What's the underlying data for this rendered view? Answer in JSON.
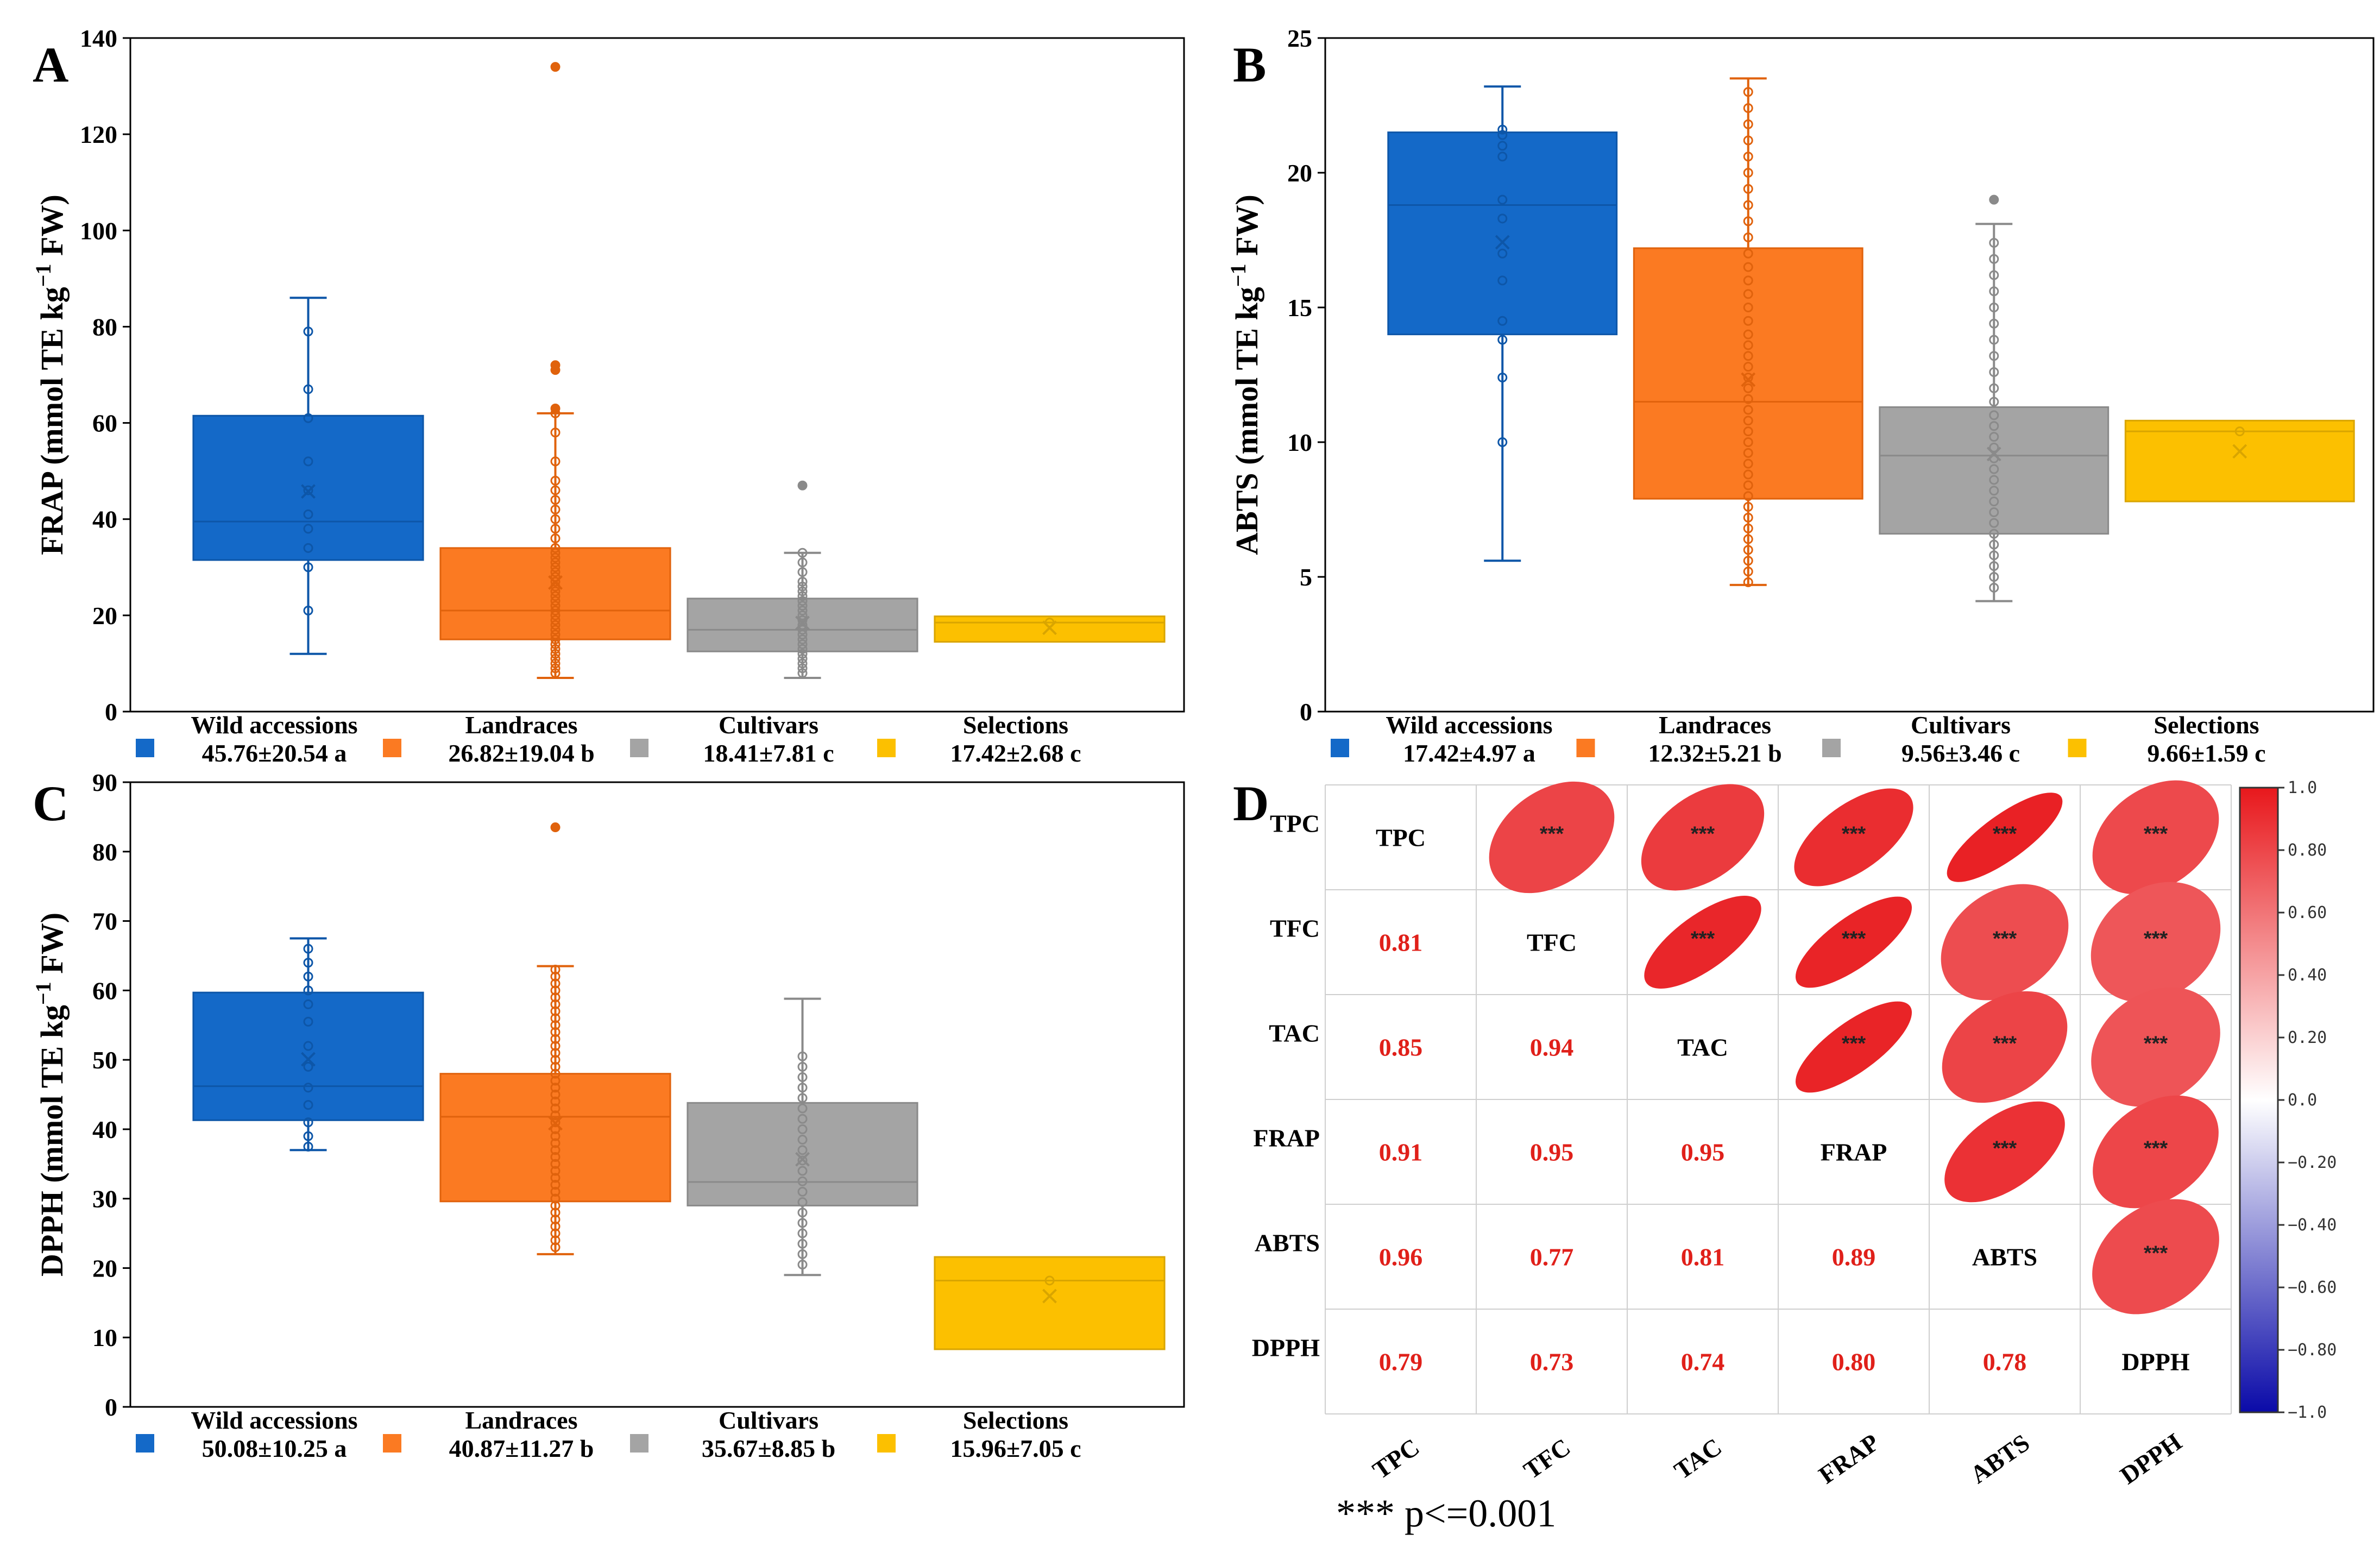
{
  "colors": {
    "wild": "#1469c8",
    "landraces": "#fb7a22",
    "cultivars": "#a4a4a4",
    "selections": "#fcc000",
    "corr_positive": "#e8181c",
    "corr_negative": "#0a0aa8"
  },
  "panels": {
    "A": "A",
    "B": "B",
    "C": "C",
    "D": "D"
  },
  "chart_data": [
    {
      "type": "box",
      "panel": "A",
      "ylabel_main": "FRAP (mmol TE kg",
      "ylabel_sup": "−1",
      "ylabel_end": " FW)",
      "ylim": [
        0,
        140
      ],
      "ticks": [
        0,
        20,
        40,
        60,
        80,
        100,
        120,
        140
      ],
      "groups": [
        {
          "name": "Wild accessions",
          "stat": "45.76±20.54 a",
          "min": 12,
          "q1": 31.5,
          "median": 39.5,
          "q3": 61.5,
          "max": 86,
          "mean": 45.76,
          "points": [
            21,
            30,
            34,
            38,
            41,
            46,
            52,
            61,
            67,
            79
          ]
        },
        {
          "name": "Landraces",
          "stat": "26.82±19.04 b",
          "min": 7,
          "q1": 15,
          "median": 21,
          "q3": 34,
          "max": 62,
          "mean": 26.82,
          "points": [
            8,
            9,
            10,
            11,
            12,
            13,
            14,
            15,
            16,
            17,
            18,
            19,
            20,
            21,
            22,
            23,
            24,
            25,
            26,
            27,
            28,
            29,
            30,
            31,
            32,
            33,
            34,
            36,
            38,
            40,
            42,
            44,
            46,
            48,
            52,
            58,
            62,
            63,
            71,
            72,
            134
          ]
        },
        {
          "name": "Cultivars",
          "stat": "18.41±7.81 c",
          "min": 7,
          "q1": 12.5,
          "median": 17,
          "q3": 23.5,
          "max": 33,
          "mean": 18.41,
          "points": [
            8,
            9,
            10,
            11,
            12,
            13,
            14,
            15,
            16,
            17,
            18,
            19,
            20,
            21,
            22,
            23,
            24,
            25,
            26,
            27,
            29,
            31,
            33,
            47
          ]
        },
        {
          "name": "Selections",
          "stat": "17.42±2.68 c",
          "min": 14.5,
          "q1": 14.5,
          "median": 18.5,
          "q3": 19.8,
          "max": 19.8,
          "mean": 17.42,
          "points": [
            18.5
          ]
        }
      ]
    },
    {
      "type": "box",
      "panel": "B",
      "ylabel_main": "ABTS (mmol TE kg",
      "ylabel_sup": "−1",
      "ylabel_end": " FW)",
      "ylim": [
        0,
        25
      ],
      "ticks": [
        0,
        5,
        10,
        15,
        20,
        25
      ],
      "groups": [
        {
          "name": "Wild accessions",
          "stat": "17.42±4.97 a",
          "min": 5.6,
          "q1": 14,
          "median": 18.8,
          "q3": 21.5,
          "max": 23.2,
          "mean": 17.42,
          "points": [
            10,
            12.4,
            13.8,
            14.5,
            16,
            17,
            18.3,
            19,
            20.6,
            21,
            21.4,
            21.6
          ]
        },
        {
          "name": "Landraces",
          "stat": "12.32±5.21 b",
          "min": 4.7,
          "q1": 7.9,
          "median": 11.5,
          "q3": 17.2,
          "max": 23.5,
          "mean": 12.32,
          "points": [
            4.8,
            5.2,
            5.6,
            6.0,
            6.4,
            6.8,
            7.2,
            7.6,
            8.0,
            8.4,
            8.8,
            9.2,
            9.6,
            10.0,
            10.4,
            10.8,
            11.2,
            11.6,
            12.0,
            12.4,
            12.8,
            13.2,
            13.6,
            14.0,
            14.5,
            15.0,
            15.5,
            16.0,
            16.5,
            17.0,
            17.6,
            18.2,
            18.8,
            19.4,
            20.0,
            20.6,
            21.2,
            21.8,
            22.4,
            23.0
          ]
        },
        {
          "name": "Cultivars",
          "stat": "9.56±3.46 c",
          "min": 4.1,
          "q1": 6.6,
          "median": 9.5,
          "q3": 11.3,
          "max": 18.1,
          "mean": 9.56,
          "points": [
            4.6,
            5.0,
            5.4,
            5.8,
            6.2,
            6.6,
            7.0,
            7.4,
            7.8,
            8.2,
            8.6,
            9.0,
            9.4,
            9.8,
            10.2,
            10.6,
            11.0,
            11.5,
            12.0,
            12.6,
            13.2,
            13.8,
            14.4,
            15.0,
            15.6,
            16.2,
            16.8,
            17.4,
            19.0
          ]
        },
        {
          "name": "Selections",
          "stat": "9.66±1.59 c",
          "min": 7.8,
          "q1": 7.8,
          "median": 10.4,
          "q3": 10.8,
          "max": 10.8,
          "mean": 9.66,
          "points": [
            10.4
          ]
        }
      ]
    },
    {
      "type": "box",
      "panel": "C",
      "ylabel_main": "DPPH  (mmol TE kg",
      "ylabel_sup": "−1",
      "ylabel_end": " FW)",
      "ylim": [
        0,
        90
      ],
      "ticks": [
        0,
        10,
        20,
        30,
        40,
        50,
        60,
        70,
        80,
        90
      ],
      "groups": [
        {
          "name": "Wild accessions",
          "stat": "50.08±10.25 a",
          "min": 37,
          "q1": 41.3,
          "median": 46.2,
          "q3": 59.7,
          "max": 67.5,
          "mean": 50.08,
          "points": [
            37.5,
            39,
            41,
            43.5,
            46,
            49,
            52,
            55.5,
            58,
            60,
            62,
            64,
            66
          ]
        },
        {
          "name": "Landraces",
          "stat": "40.87±11.27 b",
          "min": 22,
          "q1": 29.6,
          "median": 41.8,
          "q3": 48,
          "max": 63.5,
          "mean": 40.87,
          "points": [
            23,
            24,
            25,
            26,
            27,
            28,
            29,
            30,
            31,
            32,
            33,
            34,
            35,
            36,
            37,
            38,
            39,
            40,
            41,
            42,
            43,
            44,
            45,
            46,
            47,
            48,
            49,
            50,
            51,
            52,
            53,
            54,
            55,
            56,
            57,
            58,
            59,
            60,
            61,
            62,
            63,
            83.5
          ]
        },
        {
          "name": "Cultivars",
          "stat": "35.67±8.85 b",
          "min": 19,
          "q1": 29,
          "median": 32.4,
          "q3": 43.8,
          "max": 58.8,
          "mean": 35.67,
          "points": [
            20.5,
            22,
            23.5,
            25,
            26.5,
            28,
            29.5,
            31,
            32.5,
            34,
            35.5,
            37,
            38.5,
            40,
            41.5,
            43,
            44.5,
            46,
            47.5,
            49,
            50.5
          ]
        },
        {
          "name": "Selections",
          "stat": "15.96±7.05 c",
          "min": 8.3,
          "q1": 8.3,
          "median": 18.2,
          "q3": 21.6,
          "max": 21.6,
          "mean": 15.96,
          "points": [
            18.2
          ]
        }
      ]
    },
    {
      "type": "correlation_matrix",
      "panel": "D",
      "variables": [
        "TPC",
        "TFC",
        "TAC",
        "FRAP",
        "ABTS",
        "DPPH"
      ],
      "lower_values": {
        "TFC": [
          0.81
        ],
        "TAC": [
          0.85,
          0.94
        ],
        "FRAP": [
          0.91,
          0.95,
          0.95
        ],
        "ABTS": [
          0.96,
          0.77,
          0.81,
          0.89
        ],
        "DPPH": [
          0.79,
          0.73,
          0.74,
          0.8,
          0.78
        ]
      },
      "lower_labels": {
        "TFC": [
          "0.81"
        ],
        "TAC": [
          "0.85",
          "0.94"
        ],
        "FRAP": [
          "0.91",
          "0.95",
          "0.95"
        ],
        "ABTS": [
          "0.96",
          "0.77",
          "0.81",
          "0.89"
        ],
        "DPPH": [
          "0.79",
          "0.73",
          "0.74",
          "0.80",
          "0.78"
        ]
      },
      "significance": "***",
      "colorbar_ticks": [
        "1.0",
        "0.80",
        "0.60",
        "0.40",
        "0.20",
        "0.0",
        "−0.20",
        "−0.40",
        "−0.60",
        "−0.80",
        "−1.0"
      ],
      "colorbar_range": [
        -1,
        1
      ],
      "note": "*** p<=0.001"
    }
  ]
}
